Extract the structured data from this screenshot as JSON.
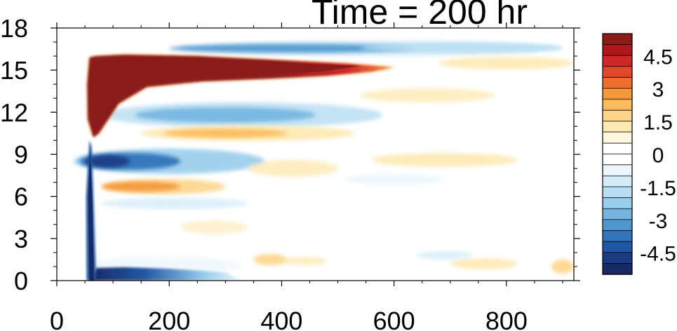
{
  "chart_data": {
    "type": "heatmap",
    "title": "Time = 200 hr",
    "xlabel": "",
    "ylabel": "",
    "xlim": [
      0,
      920
    ],
    "ylim": [
      0,
      18
    ],
    "x_ticks": [
      "0",
      "200",
      "400",
      "600",
      "800"
    ],
    "y_ticks": [
      "0",
      "3",
      "6",
      "9",
      "12",
      "15",
      "18"
    ],
    "colorbar": {
      "labels": [
        "4.5",
        "3",
        "1.5",
        "0",
        "-1.5",
        "-3",
        "-4.5"
      ],
      "levels": [
        5.5,
        5,
        4.5,
        4,
        3.5,
        3,
        2.5,
        2,
        1.5,
        1,
        0.5,
        0,
        -0.5,
        -1,
        -1.5,
        -2,
        -2.5,
        -3,
        -3.5,
        -4,
        -4.5,
        -5,
        -5.5
      ],
      "colors": [
        "#8b1a1a",
        "#b0171d",
        "#cf2727",
        "#e04a2a",
        "#ee6f2c",
        "#f59a3c",
        "#fbbb5a",
        "#fdd58b",
        "#fde9b3",
        "#fff7df",
        "#ffffff",
        "#ffffff",
        "#edf7fd",
        "#d4ecf8",
        "#b9def3",
        "#98cdec",
        "#73b5e0",
        "#4f97cf",
        "#3274ba",
        "#2257a3",
        "#1b3c84",
        "#172a63"
      ]
    },
    "features": [
      {
        "label": "upper red band",
        "x": [
          60,
          600
        ],
        "y": [
          12,
          16
        ],
        "peak": 6
      },
      {
        "label": "upper blue band",
        "x": [
          150,
          900
        ],
        "y": [
          16.2,
          17.0
        ],
        "peak": -2
      },
      {
        "label": "blue band below red",
        "x": [
          120,
          560
        ],
        "y": [
          11.4,
          12.8
        ],
        "peak": -2.5
      },
      {
        "label": "orange band",
        "x": [
          180,
          520
        ],
        "y": [
          10.2,
          10.9
        ],
        "peak": 1.5
      },
      {
        "label": "blue band near 8.4",
        "x": [
          60,
          330
        ],
        "y": [
          7.8,
          9.2
        ],
        "peak": -4.5
      },
      {
        "label": "orange band near 6.7",
        "x": [
          80,
          300
        ],
        "y": [
          6.3,
          7.1
        ],
        "peak": 3
      },
      {
        "label": "bottom blue band",
        "x": [
          60,
          330
        ],
        "y": [
          0.1,
          0.9
        ],
        "peak": -5.5
      },
      {
        "label": "vertical blue streak",
        "x": [
          55,
          70
        ],
        "y": [
          0,
          10
        ],
        "peak": -4.5
      }
    ]
  }
}
